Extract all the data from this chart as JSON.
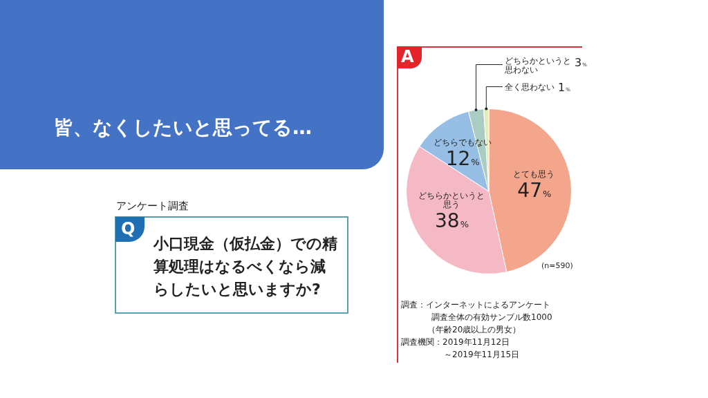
{
  "chart_data": {
    "type": "pie",
    "title": "皆、なくしたいと思ってる…",
    "categories": [
      "とても思う",
      "どちらかというと思う",
      "どちらでもない",
      "どちらかというと思わない",
      "全く思わない"
    ],
    "values": [
      47,
      38,
      12,
      3,
      1
    ],
    "value_labels": [
      "47%",
      "38%",
      "12%",
      "3%",
      "1%"
    ],
    "colors": [
      "#f4a68c",
      "#f5b9c5",
      "#97bfe6",
      "#aacdc3",
      "#e3ecb9"
    ],
    "legend": false,
    "annotations": [
      "アンケート調査",
      "Q",
      "小口現金（仮払金）での精算処理はなるべくなら減らしたいと思いますか?",
      "A",
      "(n=590)",
      "調査：インターネットによるアンケート",
      "調査全体の有効サンプル数1000",
      "（年齢20歳以上の男女）",
      "調査機関：2019年11月12日",
      "～2019年11月15日"
    ]
  }
}
